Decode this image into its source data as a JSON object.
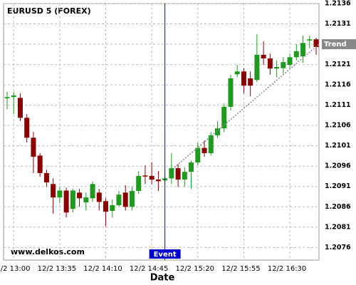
{
  "chart_data": {
    "type": "candlestick",
    "title": "EURUSD 5 (FOREX)",
    "x_label": "Date",
    "watermark": "www.delkos.com",
    "categories": [
      null,
      "12/2 13:00",
      null,
      null,
      null,
      null,
      null,
      null,
      "12/2 13:35",
      null,
      null,
      null,
      null,
      null,
      null,
      "12/2 14:10",
      null,
      null,
      null,
      null,
      null,
      null,
      "12/2 14:45",
      null,
      null,
      null,
      null,
      null,
      null,
      "12/2 15:20",
      null,
      null,
      null,
      null,
      null,
      null,
      "12/2 15:55",
      null,
      null,
      null,
      null,
      null,
      null,
      "12/2 16:30",
      null,
      null,
      null,
      null
    ],
    "open": [
      1.21127,
      1.2113,
      1.21128,
      1.21079,
      1.2103,
      1.20986,
      1.20943,
      1.20916,
      1.20883,
      1.209,
      1.20855,
      1.20895,
      1.20871,
      1.20881,
      1.20895,
      1.20874,
      1.2085,
      1.20864,
      1.20895,
      1.2086,
      1.20899,
      1.20937,
      1.20936,
      1.20927,
      1.20925,
      1.2093,
      1.20955,
      1.20927,
      1.20946,
      1.20969,
      1.21005,
      1.20992,
      1.21036,
      1.21053,
      1.21106,
      1.21186,
      1.21193,
      1.21176,
      1.21172,
      1.21234,
      1.21225,
      1.212,
      1.21201,
      1.21209,
      1.21228,
      1.2123,
      1.21269,
      1.21272
    ],
    "high": [
      1.21143,
      1.21143,
      1.21139,
      1.21088,
      1.21044,
      1.20992,
      1.20951,
      1.2093,
      1.20909,
      1.20907,
      1.20904,
      1.20904,
      1.20895,
      1.20922,
      1.20904,
      1.20881,
      1.20878,
      1.20899,
      1.20913,
      1.20909,
      1.20948,
      1.20962,
      1.20969,
      1.20948,
      1.20939,
      1.20992,
      1.20965,
      1.20957,
      1.20974,
      1.21018,
      1.21023,
      1.21044,
      1.21071,
      1.21114,
      1.21185,
      1.21209,
      1.21201,
      1.21193,
      1.21285,
      1.21267,
      1.21237,
      1.2122,
      1.21228,
      1.21237,
      1.2126,
      1.21281,
      1.21281,
      1.21276
    ],
    "low": [
      1.211,
      1.21088,
      1.21071,
      1.21018,
      1.20943,
      1.20934,
      1.20909,
      1.20843,
      1.20869,
      1.20834,
      1.20846,
      1.2086,
      1.20851,
      1.20872,
      1.20851,
      1.20813,
      1.20834,
      1.2086,
      1.20851,
      1.20851,
      1.20892,
      1.20916,
      1.20916,
      1.20899,
      1.20916,
      1.20916,
      1.20909,
      1.20909,
      1.20904,
      1.20962,
      1.20983,
      1.20986,
      1.2103,
      1.21044,
      1.21097,
      1.21179,
      1.21139,
      1.21132,
      1.21167,
      1.21209,
      1.21185,
      1.21179,
      1.21188,
      1.21201,
      1.2122,
      1.21214,
      1.2125,
      1.21234
    ],
    "close": [
      1.2113,
      1.21134,
      1.21079,
      1.2103,
      1.20983,
      1.20943,
      1.2092,
      1.20883,
      1.209,
      1.20846,
      1.209,
      1.20881,
      1.20883,
      1.20916,
      1.20872,
      1.20848,
      1.20864,
      1.2089,
      1.2086,
      1.20899,
      1.20936,
      1.20936,
      1.20927,
      1.20923,
      1.2093,
      1.20955,
      1.20927,
      1.20946,
      1.20969,
      1.21005,
      1.20992,
      1.21036,
      1.21053,
      1.21106,
      1.21176,
      1.21193,
      1.21158,
      1.21158,
      1.21234,
      1.21225,
      1.212,
      1.21204,
      1.21216,
      1.21228,
      1.21243,
      1.21263,
      1.21272,
      1.21253
    ],
    "up_color": "#1e9a1e",
    "down_color": "#8b0000",
    "ylim": [
      1.20729,
      1.2136
    ],
    "yticks": [
      1.2076,
      1.2081,
      1.2086,
      1.2091,
      1.2096,
      1.2101,
      1.2106,
      1.2111,
      1.2116,
      1.2121,
      1.2126,
      1.2131,
      1.2136
    ],
    "grid": true,
    "event": {
      "label": "Event",
      "color": "#0000cc"
    },
    "trend": {
      "label": "Trend",
      "values": [
        1.20957,
        1.2126
      ],
      "color": "#888888"
    }
  }
}
